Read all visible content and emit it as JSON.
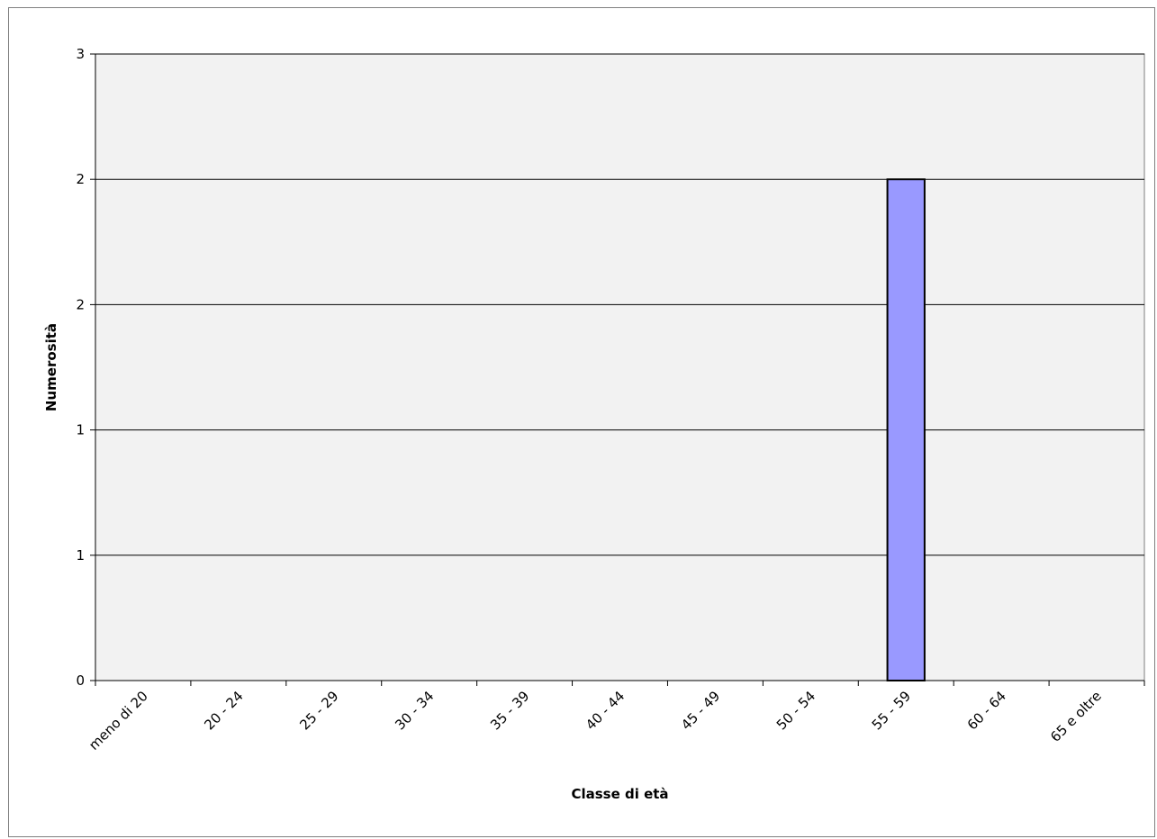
{
  "chart_data": {
    "type": "bar",
    "title": "",
    "xlabel": "Classe di età",
    "ylabel": "Numerosità",
    "categories": [
      "meno di 20",
      "20 - 24",
      "25 - 29",
      "30 - 34",
      "35 - 39",
      "40 - 44",
      "45 - 49",
      "50 - 54",
      "55 - 59",
      "60 - 64",
      "65 e oltre"
    ],
    "values": [
      0,
      0,
      0,
      0,
      0,
      0,
      0,
      0,
      2,
      0,
      0
    ],
    "ylim": [
      0,
      2.5
    ],
    "yticks": [
      0,
      0.5,
      1,
      1.5,
      2,
      2.5
    ],
    "ytick_labels": [
      "0",
      "1",
      "1",
      "2",
      "2",
      "3"
    ],
    "grid": true,
    "legend": "none",
    "colors": {
      "plot_background": "#f2f2f2",
      "bar_fill": "#9999ff",
      "bar_stroke": "#000000",
      "gridline": "#000000",
      "frame": "#7f7f7f"
    }
  }
}
